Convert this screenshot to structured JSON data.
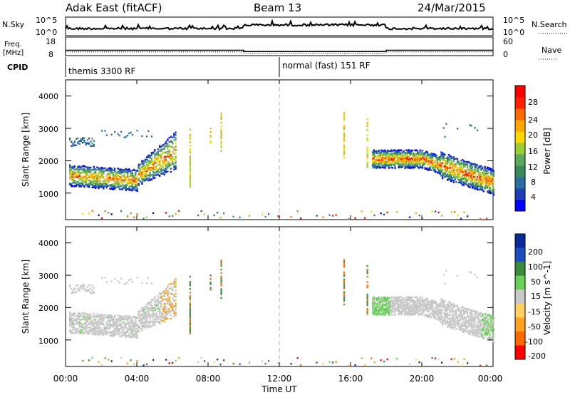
{
  "header": {
    "radar": "Adak East (fitACF)",
    "beam": "Beam 13",
    "date": "24/Mar/2015"
  },
  "noise_panel": {
    "left_label": "N.Sky",
    "left_ticks": [
      "10^5",
      "10^0"
    ],
    "right_label": "N.Search",
    "right_ticks": [
      "10^5",
      "10^0"
    ]
  },
  "freq_panel": {
    "left_label_1": "Freq.",
    "left_label_2": "[MHz]",
    "left_ticks": [
      "18",
      "8"
    ],
    "right_label": "Nave",
    "right_ticks": [
      "60",
      "0"
    ]
  },
  "cpid": {
    "label": "CPID",
    "mode_1": "themis 3300 RF",
    "mode_2": "normal (fast) 151 RF"
  },
  "x_axis": {
    "ticks": [
      "00:00",
      "04:00",
      "08:00",
      "12:00",
      "16:00",
      "20:00",
      "00:00"
    ],
    "title": "Time UT"
  },
  "power_panel": {
    "ylabel": "Slant Range [km]",
    "yticks": [
      "4000",
      "3000",
      "2000",
      "1000"
    ],
    "colorbar_label": "Power [dB]",
    "colorbar_ticks": [
      "28",
      "24",
      "20",
      "16",
      "12",
      "8",
      "4"
    ],
    "colors": [
      "#0000ff",
      "#1f3fb8",
      "#2b6fa0",
      "#3a8a5a",
      "#5fa85f",
      "#9acd32",
      "#ffd700",
      "#ffa500",
      "#ff6a00",
      "#ff2000",
      "#ff0000"
    ]
  },
  "velocity_panel": {
    "ylabel": "Slant Range [km]",
    "yticks": [
      "4000",
      "3000",
      "2000",
      "1000"
    ],
    "colorbar_label": "Velocity [m s^-1]",
    "colorbar_ticks": [
      "200",
      "100",
      "50",
      "15",
      "-15",
      "-50",
      "-100",
      "-200"
    ],
    "colors": [
      "#0a2a9a",
      "#1b4fc0",
      "#3a8a3a",
      "#6bd05a",
      "#c8c8c8",
      "#ffd060",
      "#ffa020",
      "#ff6a00",
      "#ff0000"
    ]
  },
  "chart_data": {
    "type": "heatmap",
    "x_range_hours": [
      0,
      24
    ],
    "y_range_km": [
      180,
      4500
    ],
    "freq_mhz": [
      {
        "start_h": 0,
        "end_h": 10,
        "value": 10.9
      },
      {
        "start_h": 10,
        "end_h": 18,
        "value": 10.2
      },
      {
        "start_h": 18,
        "end_h": 24,
        "value": 10.9
      }
    ],
    "nave": [
      {
        "start_h": 0,
        "end_h": 10,
        "value": 12
      },
      {
        "start_h": 10,
        "end_h": 18,
        "value": 8
      },
      {
        "start_h": 18,
        "end_h": 24,
        "value": 12
      }
    ],
    "power_scatter_regions": [
      {
        "name": "morning",
        "t_start": 0.2,
        "t_end": 6.2,
        "r_low": 1200,
        "r_high": 2900
      },
      {
        "name": "evening",
        "t_start": 17.2,
        "t_end": 24,
        "r_low": 1100,
        "r_high": 2300
      }
    ]
  }
}
